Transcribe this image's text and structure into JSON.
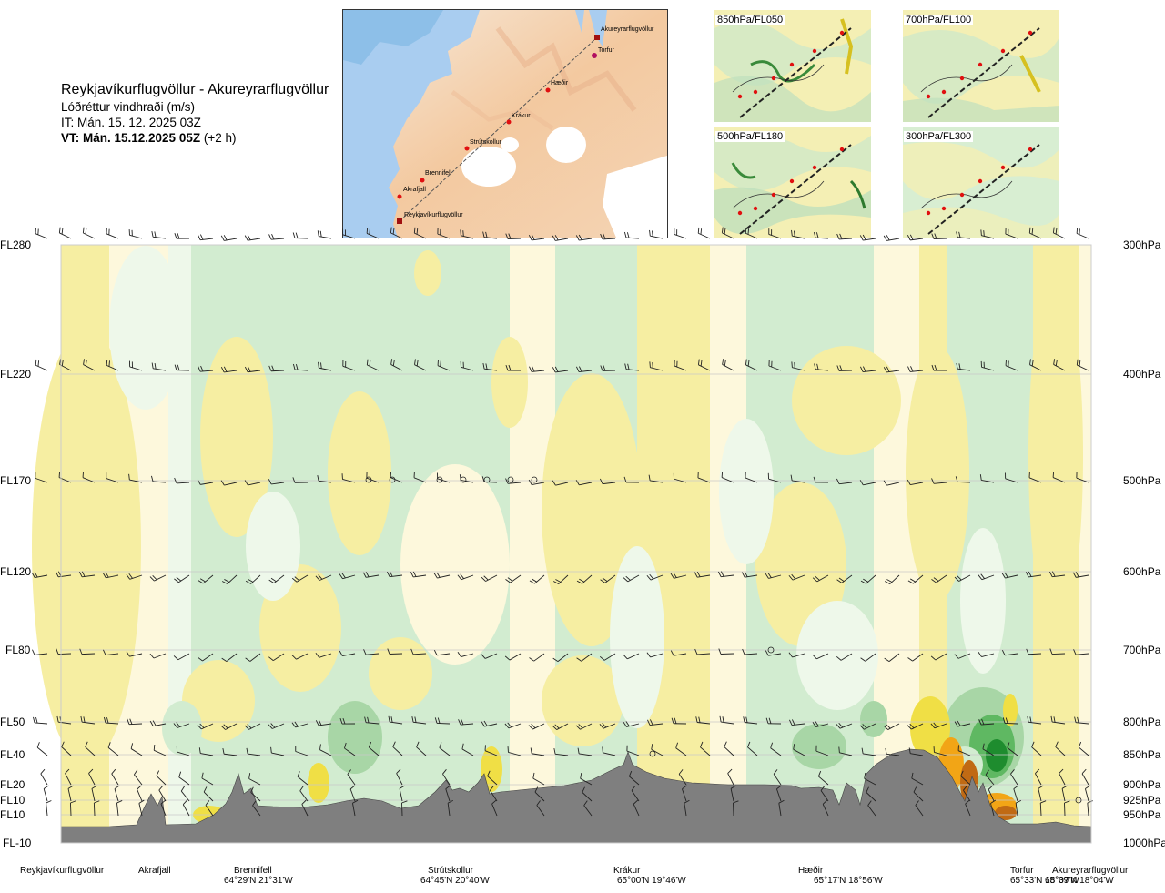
{
  "header": {
    "title": "Reykjavíkurflugvöllur - Akureyrarflugvöllur",
    "subtitle": "Lóðréttur vindhraði (m/s)",
    "it": "IT: Mán. 15. 12. 2025 03Z",
    "vt_bold": "VT: Mán. 15.12.2025 05Z",
    "vt_rest": " (+2 h)"
  },
  "map": {
    "labels": [
      "Akureyrarflugvöllur",
      "Torfur",
      "Hæðir",
      "Krákur",
      "Strútskollur",
      "Brennifell",
      "Akrafjall",
      "Reykjavíkurflugvöllur"
    ]
  },
  "thumbnails": [
    {
      "label": "850hPa/FL050"
    },
    {
      "label": "700hPa/FL100"
    },
    {
      "label": "500hPa/FL180"
    },
    {
      "label": "300hPa/FL300"
    }
  ],
  "levels_left": [
    "FL280",
    "FL220",
    "FL170",
    "FL120",
    "FL80",
    "FL50",
    "FL40",
    "FL20",
    "FL10",
    "FL10",
    "FL-10"
  ],
  "levels_right": [
    "300hPa",
    "400hPa",
    "500hPa",
    "600hPa",
    "700hPa",
    "800hPa",
    "850hPa",
    "900hPa",
    "925hPa",
    "950hPa",
    "1000hPa"
  ],
  "locations": [
    {
      "name": "Reykjavíkurflugvöllur",
      "coord": ""
    },
    {
      "name": "Akrafjall",
      "coord": ""
    },
    {
      "name": "Brennifell",
      "coord": "64°29'N 21°31'W"
    },
    {
      "name": "Strútskollur",
      "coord": "64°45'N 20°40'W"
    },
    {
      "name": "Krákur",
      "coord": "65°00'N 19°46'W"
    },
    {
      "name": "Hæðir",
      "coord": "65°17'N 18°56'W"
    },
    {
      "name": "Torfur",
      "coord": "65°33'N 18°07'W"
    },
    {
      "name": "Akureyrarflugvöllur",
      "coord": "65°39'N 18°04'W"
    }
  ],
  "chart_data": {
    "type": "heatmap",
    "title": "Lóðréttur vindhraði (m/s)",
    "y_levels_hpa": [
      300,
      400,
      500,
      600,
      700,
      800,
      850,
      900,
      925,
      950,
      1000
    ],
    "x_stations": [
      "Reykjavíkurflugvöllur",
      "Akrafjall",
      "Brennifell",
      "Strútskollur",
      "Krákur",
      "Hæðir",
      "Torfur",
      "Akureyrarflugvöllur"
    ],
    "colors": {
      "sink_light": "#fdf8dc",
      "sink_mid": "#f6eea2",
      "sink_strong": "#f0df45",
      "sink_stronger": "#f2a516",
      "sink_extreme": "#c06a14",
      "rise_light": "#eef8ea",
      "rise_mid": "#d2ecd0",
      "rise_strong": "#a8d6a6",
      "rise_stronger": "#5fb862",
      "rise_extreme": "#1e8c2e",
      "terrain": "#7f7f7f"
    }
  }
}
